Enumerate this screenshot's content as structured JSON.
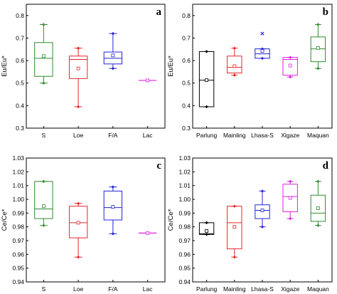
{
  "figure": {
    "panels": [
      {
        "letter": "a",
        "ylabel": "Eu/Eu*"
      },
      {
        "letter": "b",
        "ylabel": "Eu/Eu*"
      },
      {
        "letter": "c",
        "ylabel": "Ce/Ce*"
      },
      {
        "letter": "d",
        "ylabel": "Ce/Ce*"
      }
    ]
  },
  "chart_data": [
    {
      "panel": "a",
      "type": "box",
      "ylabel": "Eu/Eu*",
      "ylim": [
        0.3,
        0.85
      ],
      "yticks": [
        "0.3",
        "0.4",
        "0.5",
        "0.6",
        "0.7",
        "0.8"
      ],
      "categories": [
        "S",
        "Loe",
        "F/A",
        "Lac"
      ],
      "series": [
        {
          "category": "S",
          "color": "#2e8b2e",
          "whisker_low": 0.5,
          "q1": 0.53,
          "median": 0.61,
          "mean": 0.62,
          "q3": 0.68,
          "whisker_high": 0.76,
          "outliers": []
        },
        {
          "category": "Loe",
          "color": "#e8262a",
          "whisker_low": 0.395,
          "q1": 0.52,
          "median": 0.605,
          "mean": 0.565,
          "q3": 0.62,
          "whisker_high": 0.655,
          "outliers": []
        },
        {
          "category": "F/A",
          "color": "#2323d6",
          "whisker_low": 0.565,
          "q1": 0.585,
          "median": 0.61,
          "mean": 0.623,
          "q3": 0.638,
          "whisker_high": 0.72,
          "outliers": []
        },
        {
          "category": "Lac",
          "color": "#e020e0",
          "whisker_low": 0.512,
          "q1": 0.512,
          "median": 0.512,
          "mean": 0.512,
          "q3": 0.512,
          "whisker_high": 0.512,
          "outliers": []
        }
      ]
    },
    {
      "panel": "b",
      "type": "box",
      "ylabel": "Eu/Eu*",
      "ylim": [
        0.3,
        0.85
      ],
      "yticks": [
        "0.3",
        "0.4",
        "0.5",
        "0.6",
        "0.7",
        "0.8"
      ],
      "categories": [
        "Parlung",
        "Mainling",
        "Lhasa-S",
        "Xigaze",
        "Maquan"
      ],
      "series": [
        {
          "category": "Parlung",
          "color": "#000000",
          "whisker_low": 0.395,
          "q1": 0.395,
          "median": 0.513,
          "mean": 0.513,
          "q3": 0.64,
          "whisker_high": 0.64,
          "outliers": []
        },
        {
          "category": "Mainling",
          "color": "#e8262a",
          "whisker_low": 0.535,
          "q1": 0.545,
          "median": 0.57,
          "mean": 0.575,
          "q3": 0.62,
          "whisker_high": 0.655,
          "outliers": []
        },
        {
          "category": "Lhasa-S",
          "color": "#2323d6",
          "whisker_low": 0.61,
          "q1": 0.61,
          "median": 0.63,
          "mean": 0.643,
          "q3": 0.652,
          "whisker_high": 0.652,
          "outliers": [
            0.72
          ]
        },
        {
          "category": "Xigaze",
          "color": "#e020e0",
          "whisker_low": 0.527,
          "q1": 0.535,
          "median": 0.605,
          "mean": 0.578,
          "q3": 0.614,
          "whisker_high": 0.614,
          "outliers": []
        },
        {
          "category": "Maquan",
          "color": "#2e8b2e",
          "whisker_low": 0.565,
          "q1": 0.595,
          "median": 0.652,
          "mean": 0.656,
          "q3": 0.705,
          "whisker_high": 0.76,
          "outliers": []
        }
      ]
    },
    {
      "panel": "c",
      "type": "box",
      "ylabel": "Ce/Ce*",
      "ylim": [
        0.94,
        1.03
      ],
      "yticks": [
        "0.94",
        "0.95",
        "0.96",
        "0.97",
        "0.98",
        "0.99",
        "1.00",
        "1.01",
        "1.02",
        "1.03"
      ],
      "categories": [
        "S",
        "Loe",
        "F/A",
        "Lac"
      ],
      "series": [
        {
          "category": "S",
          "color": "#2e8b2e",
          "whisker_low": 0.981,
          "q1": 0.986,
          "median": 0.993,
          "mean": 0.995,
          "q3": 1.013,
          "whisker_high": 1.013,
          "outliers": []
        },
        {
          "category": "Loe",
          "color": "#e8262a",
          "whisker_low": 0.958,
          "q1": 0.972,
          "median": 0.983,
          "mean": 0.983,
          "q3": 0.995,
          "whisker_high": 0.997,
          "outliers": []
        },
        {
          "category": "F/A",
          "color": "#2323d6",
          "whisker_low": 0.975,
          "q1": 0.985,
          "median": 0.994,
          "mean": 0.9945,
          "q3": 1.006,
          "whisker_high": 1.009,
          "outliers": []
        },
        {
          "category": "Lac",
          "color": "#e020e0",
          "whisker_low": 0.9755,
          "q1": 0.9755,
          "median": 0.9755,
          "mean": 0.9755,
          "q3": 0.9755,
          "whisker_high": 0.9755,
          "outliers": []
        }
      ]
    },
    {
      "panel": "d",
      "type": "box",
      "ylabel": "Ce/Ce*",
      "ylim": [
        0.94,
        1.03
      ],
      "yticks": [
        "0.94",
        "0.95",
        "0.96",
        "0.97",
        "0.98",
        "0.99",
        "1.00",
        "1.01",
        "1.02",
        "1.03"
      ],
      "categories": [
        "Parlung",
        "Mainling",
        "Lhasa-S",
        "Xigaze",
        "Maquan"
      ],
      "series": [
        {
          "category": "Parlung",
          "color": "#000000",
          "whisker_low": 0.9745,
          "q1": 0.9745,
          "median": 0.975,
          "mean": 0.977,
          "q3": 0.983,
          "whisker_high": 0.983,
          "outliers": []
        },
        {
          "category": "Mainling",
          "color": "#e8262a",
          "whisker_low": 0.958,
          "q1": 0.964,
          "median": 0.983,
          "mean": 0.98,
          "q3": 0.995,
          "whisker_high": 0.995,
          "outliers": []
        },
        {
          "category": "Lhasa-S",
          "color": "#2323d6",
          "whisker_low": 0.98,
          "q1": 0.986,
          "median": 0.992,
          "mean": 0.992,
          "q3": 0.996,
          "whisker_high": 1.006,
          "outliers": []
        },
        {
          "category": "Xigaze",
          "color": "#e020e0",
          "whisker_low": 0.986,
          "q1": 0.991,
          "median": 1.002,
          "mean": 1.001,
          "q3": 1.011,
          "whisker_high": 1.013,
          "outliers": []
        },
        {
          "category": "Maquan",
          "color": "#2e8b2e",
          "whisker_low": 0.981,
          "q1": 0.984,
          "median": 0.99,
          "mean": 0.9935,
          "q3": 1.003,
          "whisker_high": 1.013,
          "outliers": []
        }
      ]
    }
  ]
}
